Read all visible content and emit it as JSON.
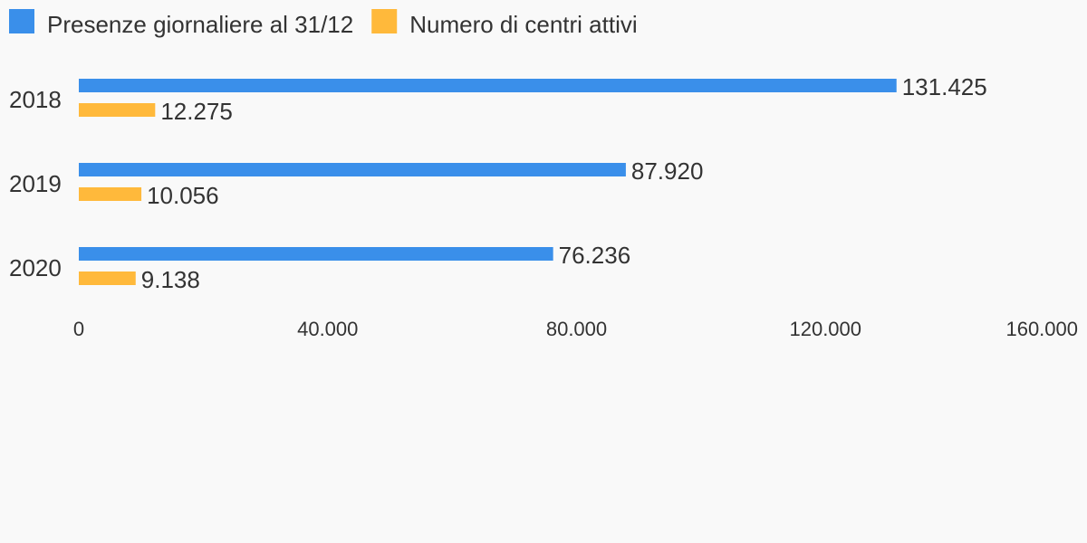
{
  "chart_data": {
    "type": "bar",
    "orientation": "horizontal",
    "categories": [
      "2018",
      "2019",
      "2020"
    ],
    "series": [
      {
        "name": "Presenze giornaliere al 31/12",
        "color": "#3a8fea",
        "values": [
          131425,
          87920,
          76236
        ],
        "labels": [
          "131.425",
          "87.920",
          "76.236"
        ]
      },
      {
        "name": "Numero di centri attivi",
        "color": "#ffb93b",
        "values": [
          12275,
          10056,
          9138
        ],
        "labels": [
          "12.275",
          "10.056",
          "9.138"
        ]
      }
    ],
    "xlim": [
      0,
      160000
    ],
    "x_ticks": [
      0,
      40000,
      80000,
      120000,
      160000
    ],
    "x_tick_labels": [
      "0",
      "40.000",
      "80.000",
      "120.000",
      "160.000"
    ],
    "grid": false,
    "legend_position": "top-left"
  }
}
